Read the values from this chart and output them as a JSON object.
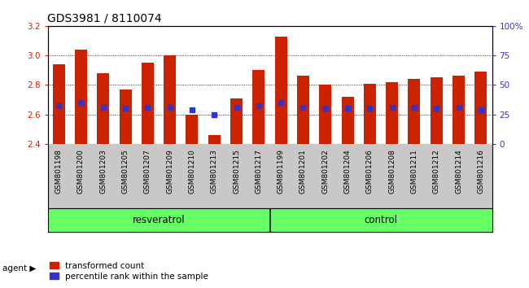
{
  "title": "GDS3981 / 8110074",
  "samples": [
    "GSM801198",
    "GSM801200",
    "GSM801203",
    "GSM801205",
    "GSM801207",
    "GSM801209",
    "GSM801210",
    "GSM801213",
    "GSM801215",
    "GSM801217",
    "GSM801199",
    "GSM801201",
    "GSM801202",
    "GSM801204",
    "GSM801206",
    "GSM801208",
    "GSM801211",
    "GSM801212",
    "GSM801214",
    "GSM801216"
  ],
  "bar_tops": [
    2.94,
    3.04,
    2.88,
    2.77,
    2.95,
    3.0,
    2.6,
    2.46,
    2.71,
    2.9,
    3.13,
    2.86,
    2.8,
    2.72,
    2.81,
    2.82,
    2.84,
    2.85,
    2.86,
    2.89
  ],
  "blue_positions": [
    2.66,
    2.68,
    2.65,
    2.64,
    2.65,
    2.65,
    2.63,
    2.6,
    2.65,
    2.66,
    2.68,
    2.65,
    2.64,
    2.64,
    2.64,
    2.65,
    2.65,
    2.64,
    2.65,
    2.63
  ],
  "baseline": 2.4,
  "ylim_left": [
    2.4,
    3.2
  ],
  "ylim_right": [
    0,
    100
  ],
  "yticks_left": [
    2.4,
    2.6,
    2.8,
    3.0,
    3.2
  ],
  "yticks_right": [
    0,
    25,
    50,
    75,
    100
  ],
  "ytick_labels_right": [
    "0",
    "25",
    "50",
    "75",
    "100%"
  ],
  "bar_color": "#cc2200",
  "blue_color": "#3333cc",
  "resveratrol_count": 10,
  "control_count": 10,
  "group_labels": [
    "resveratrol",
    "control"
  ],
  "group_bg_color": "#66ff66",
  "agent_label": "agent",
  "legend_items": [
    "transformed count",
    "percentile rank within the sample"
  ],
  "title_fontsize": 10,
  "tick_fontsize": 7.5,
  "label_fontsize": 6.5,
  "bar_width": 0.55,
  "plot_bg_color": "#ffffff",
  "xlabel_bg_color": "#c8c8c8",
  "title_color": "#000000",
  "left_axis_color": "#cc2200",
  "right_axis_color": "#3333cc"
}
